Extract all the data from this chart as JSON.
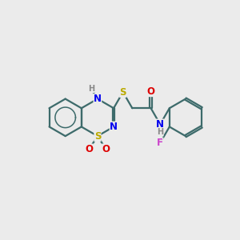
{
  "background_color": "#ebebeb",
  "atom_colors": {
    "C": "#3a3a3a",
    "N": "#0000ee",
    "O": "#dd0000",
    "S": "#bbaa00",
    "F": "#cc44cc",
    "H": "#888888"
  },
  "bond_color": "#3d6b6b",
  "bond_width": 1.6,
  "font_size_atom": 8.5,
  "fig_size": [
    3.0,
    3.0
  ],
  "dpi": 100
}
